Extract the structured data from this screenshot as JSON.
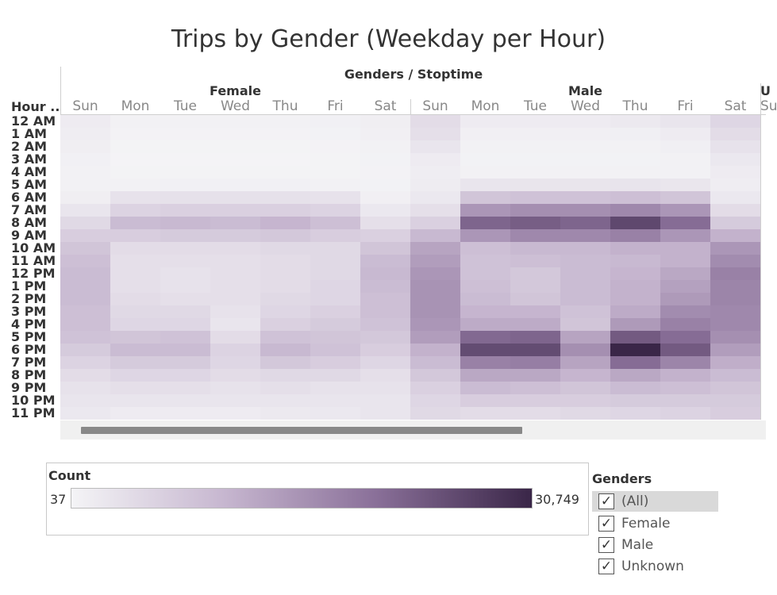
{
  "title": "Trips by Gender (Weekday per Hour)",
  "column_header": "Genders / Stoptime",
  "row_header": "Hour ..",
  "groups": [
    {
      "label": "Female"
    },
    {
      "label": "Male"
    },
    {
      "label": "U"
    }
  ],
  "days": [
    "Sun",
    "Mon",
    "Tue",
    "Wed",
    "Thu",
    "Fri",
    "Sat"
  ],
  "hours": [
    "12 AM",
    "1 AM",
    "2 AM",
    "3 AM",
    "4 AM",
    "5 AM",
    "6 AM",
    "7 AM",
    "8 AM",
    "9 AM",
    "10 AM",
    "11 AM",
    "12 PM",
    "1 PM",
    "2 PM",
    "3 PM",
    "4 PM",
    "5 PM",
    "6 PM",
    "7 PM",
    "8 PM",
    "9 PM",
    "10 PM",
    "11 PM"
  ],
  "legend": {
    "title": "Count",
    "min_label": "37",
    "max_label": "30,749",
    "min": 37,
    "max": 30749,
    "colors": [
      "#f4f4f6",
      "#c7b7d0",
      "#8a7099",
      "#3a2648"
    ]
  },
  "filter": {
    "title": "Genders",
    "items": [
      {
        "label": "(All)",
        "checked": true,
        "selected": true
      },
      {
        "label": "Female",
        "checked": true,
        "selected": false
      },
      {
        "label": "Male",
        "checked": true,
        "selected": false
      },
      {
        "label": "Unknown",
        "checked": true,
        "selected": false
      }
    ]
  },
  "chart_data": {
    "type": "heatmap",
    "title": "Trips by Gender (Weekday per Hour)",
    "xlabel": "Genders / Stoptime",
    "ylabel": "Hour ..",
    "x_groups": [
      "Female",
      "Male"
    ],
    "x": [
      "Sun",
      "Mon",
      "Tue",
      "Wed",
      "Thu",
      "Fri",
      "Sat"
    ],
    "y": [
      "12 AM",
      "1 AM",
      "2 AM",
      "3 AM",
      "4 AM",
      "5 AM",
      "6 AM",
      "7 AM",
      "8 AM",
      "9 AM",
      "10 AM",
      "11 AM",
      "12 PM",
      "1 PM",
      "2 PM",
      "3 PM",
      "4 PM",
      "5 PM",
      "6 PM",
      "7 PM",
      "8 PM",
      "9 PM",
      "10 PM",
      "11 PM"
    ],
    "colorscale_range": [
      37,
      30749
    ],
    "series": [
      {
        "name": "Female",
        "values": [
          [
            1500,
            500,
            500,
            500,
            500,
            700,
            1000
          ],
          [
            1200,
            300,
            300,
            300,
            300,
            400,
            800
          ],
          [
            1000,
            200,
            200,
            200,
            200,
            300,
            600
          ],
          [
            700,
            150,
            150,
            150,
            150,
            200,
            400
          ],
          [
            500,
            200,
            200,
            200,
            200,
            200,
            300
          ],
          [
            500,
            600,
            700,
            700,
            700,
            600,
            400
          ],
          [
            1000,
            3000,
            3200,
            3200,
            3200,
            3000,
            800
          ],
          [
            2500,
            5500,
            6000,
            6000,
            6000,
            5500,
            2000
          ],
          [
            4500,
            9500,
            10000,
            9500,
            10500,
            9000,
            3500
          ],
          [
            6500,
            6500,
            7000,
            7000,
            7500,
            6500,
            6000
          ],
          [
            8000,
            4000,
            4000,
            4000,
            4500,
            4500,
            8000
          ],
          [
            9000,
            3500,
            3500,
            3500,
            4000,
            4500,
            9500
          ],
          [
            9500,
            3500,
            3000,
            3500,
            4000,
            4500,
            10000
          ],
          [
            9500,
            3500,
            3000,
            3500,
            4000,
            5000,
            9500
          ],
          [
            9500,
            4000,
            3500,
            3500,
            4500,
            5000,
            9000
          ],
          [
            9000,
            4500,
            4500,
            3000,
            5000,
            6000,
            9000
          ],
          [
            9000,
            5000,
            5000,
            2500,
            6000,
            7000,
            8500
          ],
          [
            8500,
            8000,
            8500,
            4000,
            8500,
            8000,
            7500
          ],
          [
            7000,
            9500,
            9500,
            5500,
            10000,
            8500,
            6500
          ],
          [
            5500,
            7000,
            7000,
            5000,
            7500,
            6500,
            5000
          ],
          [
            4000,
            5000,
            5000,
            4000,
            4500,
            4500,
            3500
          ],
          [
            3000,
            3500,
            3500,
            3000,
            3500,
            3000,
            3000
          ],
          [
            2500,
            2500,
            2500,
            2500,
            2500,
            2500,
            2500
          ],
          [
            2000,
            1500,
            1500,
            1500,
            1800,
            2000,
            2500
          ]
        ]
      },
      {
        "name": "Male",
        "values": [
          [
            4000,
            1500,
            1500,
            1500,
            1800,
            2500,
            5000
          ],
          [
            3500,
            800,
            800,
            800,
            900,
            1500,
            4000
          ],
          [
            2500,
            500,
            500,
            500,
            600,
            900,
            3000
          ],
          [
            1500,
            400,
            400,
            400,
            400,
            600,
            2000
          ],
          [
            1200,
            500,
            500,
            500,
            500,
            600,
            1500
          ],
          [
            1300,
            2500,
            2600,
            2600,
            2700,
            2400,
            1200
          ],
          [
            2000,
            8000,
            8500,
            8500,
            9000,
            8000,
            2000
          ],
          [
            3500,
            15000,
            16000,
            16000,
            17000,
            15000,
            4000
          ],
          [
            6000,
            22000,
            23000,
            22000,
            26000,
            21000,
            7000
          ],
          [
            10000,
            15000,
            17000,
            17000,
            18000,
            15000,
            11000
          ],
          [
            13000,
            9000,
            10000,
            10000,
            11000,
            11000,
            15000
          ],
          [
            14000,
            8500,
            9000,
            9500,
            10000,
            11000,
            16500
          ],
          [
            15000,
            8500,
            7500,
            9500,
            10500,
            12500,
            18000
          ],
          [
            15500,
            9000,
            7500,
            9500,
            11000,
            13500,
            17500
          ],
          [
            15500,
            9500,
            8000,
            9500,
            11000,
            14500,
            17500
          ],
          [
            15500,
            10500,
            10500,
            8500,
            12000,
            16500,
            17000
          ],
          [
            15000,
            12000,
            12000,
            8000,
            14500,
            18000,
            17000
          ],
          [
            14000,
            21500,
            22000,
            13000,
            23500,
            21000,
            16000
          ],
          [
            11000,
            25500,
            25500,
            16000,
            30749,
            23500,
            14000
          ],
          [
            9500,
            18000,
            18500,
            13000,
            21000,
            17500,
            11500
          ],
          [
            7500,
            12500,
            12500,
            10500,
            12500,
            11000,
            9500
          ],
          [
            6000,
            9500,
            9000,
            8000,
            9500,
            9000,
            8000
          ],
          [
            5000,
            6500,
            6500,
            6500,
            7000,
            7000,
            7000
          ],
          [
            4500,
            4000,
            4000,
            4500,
            5000,
            5500,
            6500
          ]
        ]
      }
    ]
  }
}
